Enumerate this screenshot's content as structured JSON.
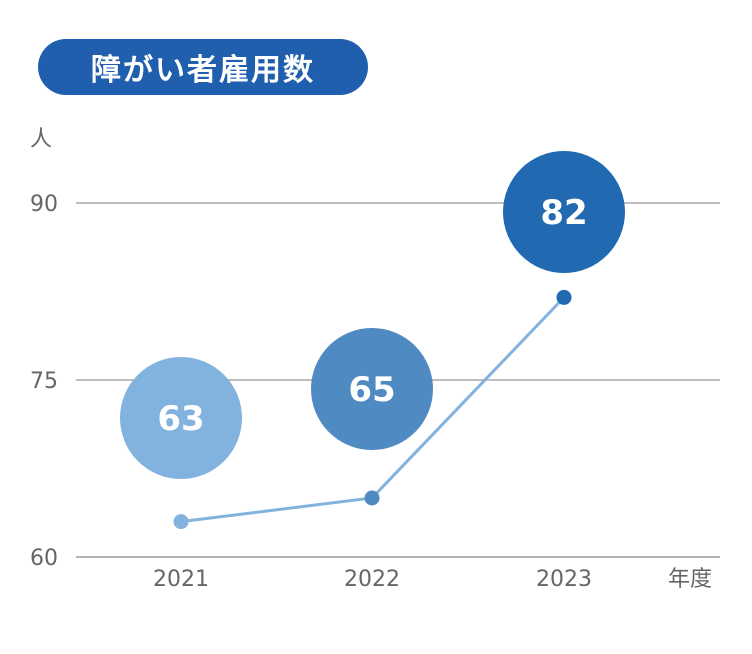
{
  "title": "障がい者雇用数",
  "chart_data": {
    "type": "line",
    "title": "障がい者雇用数",
    "y_unit": "人",
    "x_unit": "年度",
    "categories": [
      "2021",
      "2022",
      "2023"
    ],
    "values": [
      63,
      65,
      82
    ],
    "ylim": [
      60,
      90
    ],
    "yticks": [
      60,
      75,
      90
    ],
    "grid": true,
    "colors": {
      "line": "#82b3df",
      "bubbles": [
        "#82b3df",
        "#4f8bc2",
        "#2169b0"
      ],
      "title_bg": "#1f5fae"
    }
  }
}
